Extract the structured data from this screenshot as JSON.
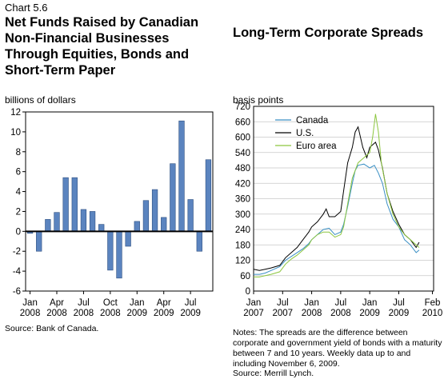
{
  "chart_number": "Chart 5.6",
  "left_title": "Net Funds Raised by Canadian Non-Financial Businesses Through Equities, Bonds and Short-Term Paper",
  "right_title": "Long-Term Corporate Spreads",
  "left_source": "Source: Bank of Canada.",
  "right_notes": "Notes: The spreads are the difference between corporate and government yield of bonds with a maturity between 7 and 10 years. Weekly data up to and including November 6, 2009.",
  "right_source": "Source: Merrill Lynch.",
  "colors": {
    "bar": "#5b84bf",
    "bar_edge": "#2d4f80",
    "canada": "#3a8fc4",
    "us": "#000000",
    "euro": "#8cc63f"
  },
  "chart_data": [
    {
      "type": "bar",
      "ylabel": "billions of dollars",
      "ylim": [
        -6,
        12
      ],
      "yticks": [
        -6,
        -4,
        -2,
        0,
        2,
        4,
        6,
        8,
        10,
        12
      ],
      "x_tick_labels": [
        {
          "label": "Jan",
          "sub": "2008",
          "index": 0
        },
        {
          "label": "Apr",
          "sub": "2008",
          "index": 3
        },
        {
          "label": "Jul",
          "sub": "2008",
          "index": 6
        },
        {
          "label": "Oct",
          "sub": "2008",
          "index": 9
        },
        {
          "label": "Jan",
          "sub": "2009",
          "index": 12
        },
        {
          "label": "Apr",
          "sub": "2009",
          "index": 15
        },
        {
          "label": "Jul",
          "sub": "2009",
          "index": 18
        }
      ],
      "categories": [
        "Jan 2008",
        "Feb 2008",
        "Mar 2008",
        "Apr 2008",
        "May 2008",
        "Jun 2008",
        "Jul 2008",
        "Aug 2008",
        "Sep 2008",
        "Oct 2008",
        "Nov 2008",
        "Dec 2008",
        "Jan 2009",
        "Feb 2009",
        "Mar 2009",
        "Apr 2009",
        "May 2009",
        "Jun 2009",
        "Jul 2009",
        "Aug 2009",
        "Sep 2009"
      ],
      "values": [
        -0.2,
        -2.0,
        1.2,
        1.9,
        5.4,
        5.4,
        2.2,
        2.0,
        0.7,
        -3.9,
        -4.7,
        -1.5,
        1.0,
        3.1,
        4.2,
        1.4,
        6.8,
        11.1,
        3.2,
        -2.0,
        7.2
      ],
      "grid": false
    },
    {
      "type": "line",
      "ylabel": "basis points",
      "ylim": [
        0,
        720
      ],
      "yticks": [
        0,
        60,
        120,
        180,
        240,
        300,
        360,
        420,
        480,
        540,
        600,
        660,
        720
      ],
      "x_tick_labels": [
        {
          "label": "Jan",
          "sub": "2007",
          "x": 2007.0
        },
        {
          "label": "Jul",
          "sub": "2007",
          "x": 2007.5
        },
        {
          "label": "Jan",
          "sub": "2008",
          "x": 2008.0
        },
        {
          "label": "Jul",
          "sub": "2008",
          "x": 2008.5
        },
        {
          "label": "Jan",
          "sub": "2009",
          "x": 2009.0
        },
        {
          "label": "Jul",
          "sub": "2009",
          "x": 2009.5
        },
        {
          "label": "Feb",
          "sub": "2010",
          "x": 2010.08
        }
      ],
      "xlim": [
        2007.0,
        2010.1
      ],
      "legend_position": "top-left",
      "grid": true,
      "series": [
        {
          "name": "Canada",
          "color_key": "canada",
          "x": [
            2007.0,
            2007.1,
            2007.2,
            2007.3,
            2007.45,
            2007.55,
            2007.65,
            2007.75,
            2007.85,
            2007.95,
            2008.0,
            2008.1,
            2008.2,
            2008.3,
            2008.4,
            2008.5,
            2008.55,
            2008.62,
            2008.7,
            2008.75,
            2008.8,
            2008.9,
            2009.0,
            2009.08,
            2009.15,
            2009.22,
            2009.3,
            2009.4,
            2009.5,
            2009.6,
            2009.7,
            2009.8,
            2009.85
          ],
          "y": [
            65,
            65,
            70,
            80,
            95,
            120,
            135,
            150,
            165,
            185,
            200,
            220,
            240,
            245,
            220,
            230,
            260,
            330,
            420,
            470,
            490,
            495,
            480,
            490,
            460,
            420,
            340,
            280,
            250,
            200,
            180,
            150,
            160
          ]
        },
        {
          "name": "U.S.",
          "color_key": "us",
          "x": [
            2007.0,
            2007.1,
            2007.2,
            2007.3,
            2007.45,
            2007.55,
            2007.65,
            2007.75,
            2007.85,
            2007.95,
            2008.0,
            2008.1,
            2008.2,
            2008.25,
            2008.3,
            2008.4,
            2008.5,
            2008.55,
            2008.62,
            2008.7,
            2008.75,
            2008.8,
            2008.88,
            2008.95,
            2009.0,
            2009.1,
            2009.15,
            2009.22,
            2009.3,
            2009.4,
            2009.5,
            2009.6,
            2009.7,
            2009.8,
            2009.85
          ],
          "y": [
            85,
            80,
            85,
            90,
            100,
            130,
            150,
            170,
            200,
            230,
            250,
            270,
            300,
            320,
            290,
            290,
            310,
            390,
            500,
            560,
            620,
            640,
            560,
            520,
            560,
            580,
            550,
            480,
            380,
            310,
            260,
            220,
            200,
            170,
            190
          ]
        },
        {
          "name": "Euro area",
          "color_key": "euro",
          "x": [
            2007.0,
            2007.1,
            2007.2,
            2007.3,
            2007.45,
            2007.55,
            2007.65,
            2007.75,
            2007.85,
            2007.95,
            2008.0,
            2008.1,
            2008.2,
            2008.3,
            2008.4,
            2008.5,
            2008.55,
            2008.62,
            2008.7,
            2008.75,
            2008.8,
            2008.9,
            2009.0,
            2009.05,
            2009.1,
            2009.15,
            2009.2,
            2009.3,
            2009.4,
            2009.5,
            2009.6,
            2009.7,
            2009.8,
            2009.85
          ],
          "y": [
            55,
            55,
            60,
            65,
            75,
            105,
            125,
            140,
            160,
            180,
            200,
            220,
            230,
            230,
            210,
            220,
            250,
            340,
            440,
            470,
            500,
            520,
            540,
            600,
            690,
            620,
            500,
            380,
            300,
            250,
            220,
            200,
            180,
            170
          ]
        }
      ]
    }
  ]
}
